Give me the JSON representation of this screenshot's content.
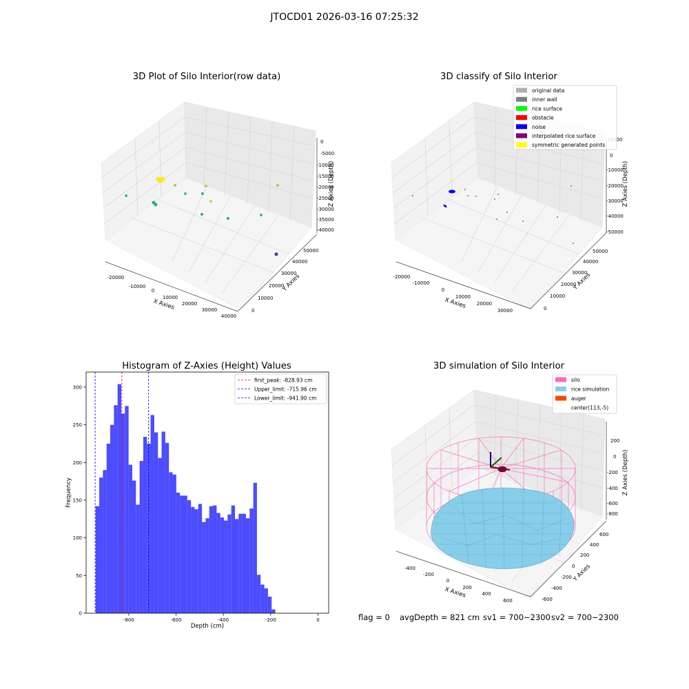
{
  "figure": {
    "suptitle": "JTOCD01 2026-03-16 07:25:32",
    "footer": {
      "flag": "flag = 0",
      "avg_depth": "avgDepth = 821 cm",
      "sv1": "sv1 = 700~2300",
      "sv2": "sv2 = 700~2300"
    }
  },
  "chart_data": [
    {
      "type": "scatter",
      "projection": "3d",
      "title": "3D Plot of Silo Interior(row data)",
      "xlabel": "X Axies",
      "ylabel": "Y Axies",
      "zlabel": "Z Axies (Depth)",
      "x_ticks": [
        "-20000",
        "-10000",
        "0",
        "10000",
        "20000",
        "30000",
        "40000"
      ],
      "y_ticks": [
        "0",
        "10000",
        "20000",
        "30000",
        "40000",
        "50000"
      ],
      "z_ticks": [
        "0",
        "-5000",
        "-10000",
        "-15000",
        "-20000",
        "-25000",
        "-30000",
        "-35000",
        "-40000"
      ],
      "colormap": "viridis",
      "grid": true
    },
    {
      "type": "scatter",
      "projection": "3d",
      "title": "3D classify of Silo Interior",
      "xlabel": "X Axies",
      "ylabel": "Y Axies",
      "zlabel": "Z Axies (Depth)",
      "x_ticks": [
        "-20000",
        "-10000",
        "0",
        "10000",
        "20000",
        "30000"
      ],
      "y_ticks": [
        "0",
        "10000",
        "20000",
        "30000",
        "40000",
        "50000"
      ],
      "z_ticks": [
        "10000",
        "0",
        "-10000",
        "-20000",
        "-30000",
        "-40000",
        "-50000"
      ],
      "legend": {
        "placement": "top-right",
        "entries": [
          {
            "label": "original data",
            "color": "#b0b0b0"
          },
          {
            "label": "inner wall",
            "color": "#808080"
          },
          {
            "label": "rice surface",
            "color": "#00ff00"
          },
          {
            "label": "obstacle",
            "color": "#ff0000"
          },
          {
            "label": "noise",
            "color": "#0000ff"
          },
          {
            "label": "interpolated rice surface",
            "color": "#800080"
          },
          {
            "label": "symmetric generated points",
            "color": "#ffff00"
          }
        ]
      },
      "grid": true
    },
    {
      "type": "bar",
      "subtype": "histogram",
      "title": "Histogram of Z-Axies (Height) Values",
      "xlabel": "Depth (cm)",
      "ylabel": "Frequency",
      "bin_edges_start": -940,
      "bin_width": 15.5,
      "values": [
        142,
        180,
        190,
        225,
        250,
        276,
        304,
        265,
        275,
        197,
        176,
        144,
        202,
        234,
        225,
        263,
        240,
        206,
        241,
        226,
        187,
        184,
        160,
        156,
        156,
        150,
        141,
        138,
        145,
        121,
        126,
        142,
        143,
        133,
        127,
        123,
        131,
        143,
        125,
        132,
        132,
        126,
        139,
        173,
        51,
        38,
        33,
        22,
        5
      ],
      "xlim": [
        -980,
        45
      ],
      "ylim": [
        0,
        320
      ],
      "x_ticks": [
        -800,
        -600,
        -400,
        -200,
        0
      ],
      "y_ticks": [
        0,
        50,
        100,
        150,
        200,
        250,
        300
      ],
      "lines": [
        {
          "label": "first_peak: -828.93 cm",
          "x": -828.93,
          "color": "#ff0000"
        },
        {
          "label": "Upper_limit: -715.96 cm",
          "x": -715.96,
          "color": "#0000ff"
        },
        {
          "label": "Lower_limit: -941.90 cm",
          "x": -941.9,
          "color": "#0000ff"
        }
      ],
      "bar_color": "#4c4cff",
      "legend_placement": "top-right"
    },
    {
      "type": "surface",
      "projection": "3d",
      "title": "3D simulation of Silo Interior",
      "xlabel": "X Axies",
      "ylabel": "Y Axies",
      "zlabel": "Z Axies (Depth)",
      "x_ticks": [
        "-400",
        "-200",
        "0",
        "200",
        "400",
        "600"
      ],
      "y_ticks": [
        "-600",
        "-400",
        "-200",
        "0",
        "200",
        "400",
        "600"
      ],
      "z_ticks": [
        "200",
        "0",
        "-200",
        "-400",
        "-600",
        "-800"
      ],
      "legend": {
        "placement": "top-right",
        "entries": [
          {
            "label": "silo",
            "color": "#ff69b4"
          },
          {
            "label": "rice simulation",
            "color": "#87ceeb"
          },
          {
            "label": "auger",
            "color": "#ff4500"
          },
          {
            "label": "center(113,-5)",
            "color": "#ffffff"
          }
        ]
      },
      "grid": true
    }
  ]
}
